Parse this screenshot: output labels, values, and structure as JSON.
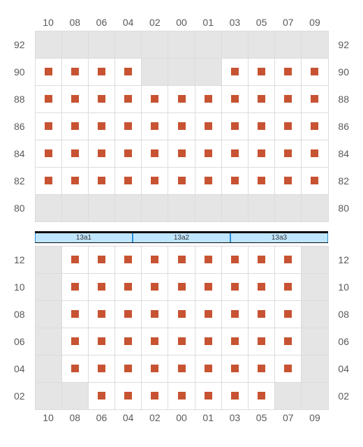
{
  "columns": [
    "10",
    "08",
    "06",
    "04",
    "02",
    "00",
    "01",
    "03",
    "05",
    "07",
    "09"
  ],
  "top_rows": [
    "92",
    "90",
    "88",
    "86",
    "84",
    "82",
    "80"
  ],
  "bottom_rows": [
    "12",
    "10",
    "08",
    "06",
    "04",
    "02"
  ],
  "top_seats": {
    "92": [],
    "90": [
      0,
      1,
      2,
      3,
      7,
      8,
      9,
      10
    ],
    "88": [
      0,
      1,
      2,
      3,
      4,
      5,
      6,
      7,
      8,
      9,
      10
    ],
    "86": [
      0,
      1,
      2,
      3,
      4,
      5,
      6,
      7,
      8,
      9,
      10
    ],
    "84": [
      0,
      1,
      2,
      3,
      4,
      5,
      6,
      7,
      8,
      9,
      10
    ],
    "82": [
      0,
      1,
      2,
      3,
      4,
      5,
      6,
      7,
      8,
      9,
      10
    ],
    "80": []
  },
  "bottom_seats": {
    "12": [
      1,
      2,
      3,
      4,
      5,
      6,
      7,
      8,
      9
    ],
    "10": [
      1,
      2,
      3,
      4,
      5,
      6,
      7,
      8,
      9
    ],
    "08": [
      1,
      2,
      3,
      4,
      5,
      6,
      7,
      8,
      9
    ],
    "06": [
      1,
      2,
      3,
      4,
      5,
      6,
      7,
      8,
      9
    ],
    "04": [
      1,
      2,
      3,
      4,
      5,
      6,
      7,
      8,
      9
    ],
    "02": [
      2,
      3,
      4,
      5,
      6,
      7,
      8
    ]
  },
  "divider_labels": [
    "13a1",
    "13a2",
    "13a3"
  ],
  "colors": {
    "seat_mark": "#c75332",
    "empty_bg": "#e5e5e5",
    "seat_bg": "#ffffff",
    "grid_line": "#dcdcdc",
    "label": "#595959",
    "divider_bg": "#bfe6ff",
    "divider_border": "#2a8fd6",
    "divider_top": "#0a0a0a"
  }
}
